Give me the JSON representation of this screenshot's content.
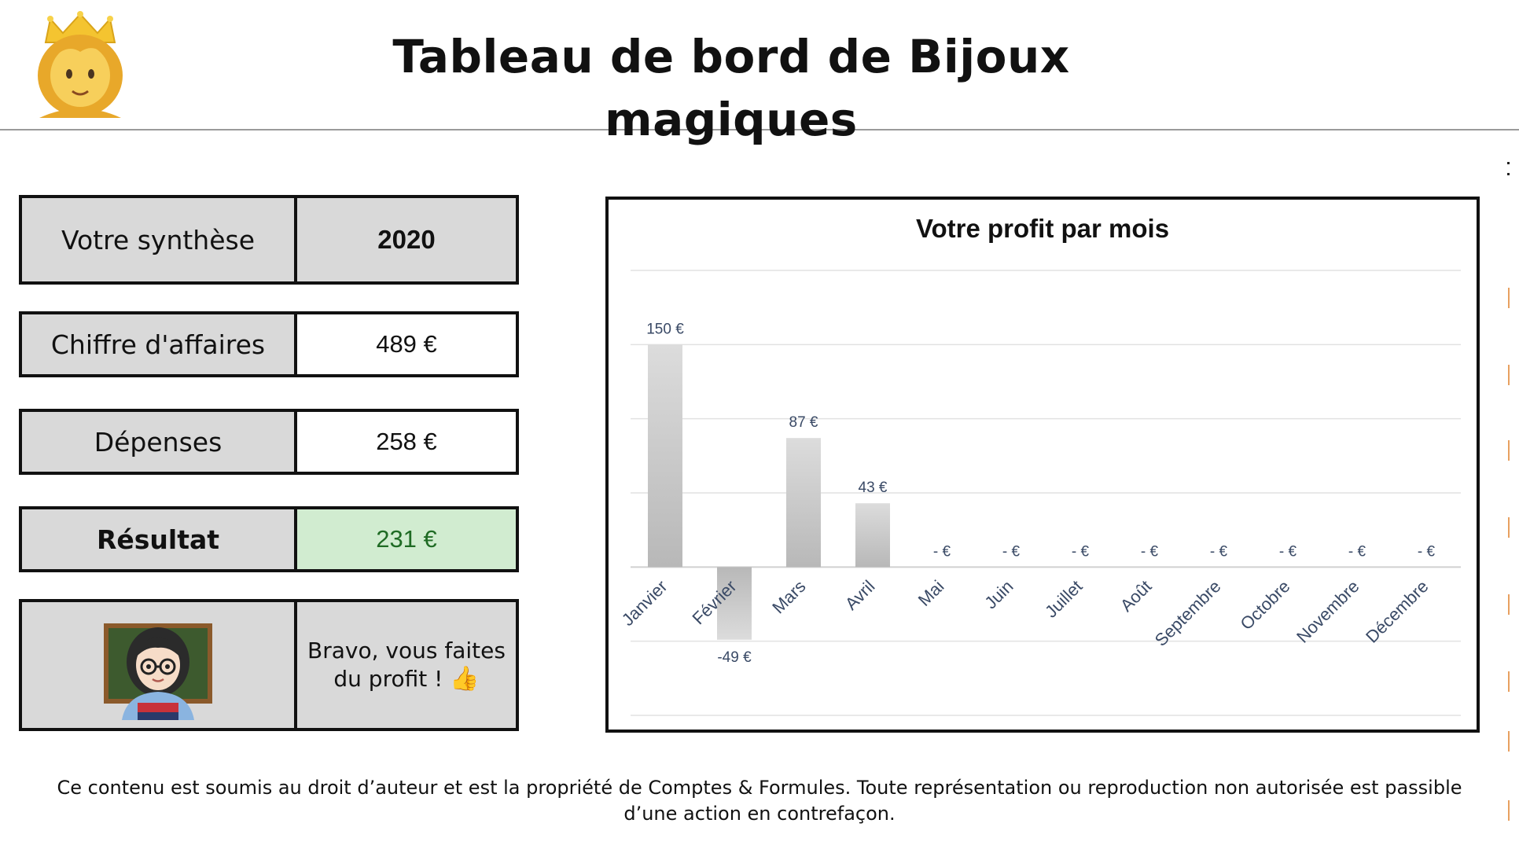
{
  "header": {
    "title": "Tableau de bord de Bijoux magiques",
    "icon": "princess-icon"
  },
  "summary": {
    "year_label": "Votre synthèse",
    "year_value": "2020",
    "revenue_label": "Chiffre d'affaires",
    "revenue_value": "489 €",
    "expenses_label": "Dépenses",
    "expenses_value": "258 €",
    "result_label": "Résultat",
    "result_value": "231 €",
    "message": "Bravo, vous faites du profit !",
    "message_icon": "thumbs-up-icon",
    "teacher_icon": "teacher-icon",
    "result_color": "#1f6b24",
    "result_bg": "#d1ecd0"
  },
  "chart_data": {
    "type": "bar",
    "title": "Votre profit par mois",
    "categories": [
      "Janvier",
      "Février",
      "Mars",
      "Avril",
      "Mai",
      "Juin",
      "Juillet",
      "Août",
      "Septembre",
      "Octobre",
      "Novembre",
      "Décembre"
    ],
    "values": [
      150,
      -49,
      87,
      43,
      0,
      0,
      0,
      0,
      0,
      0,
      0,
      0
    ],
    "data_labels": [
      "150 €",
      "-49 €",
      "87 €",
      "43 €",
      "-   €",
      "-   €",
      "-   €",
      "-   €",
      "-   €",
      "-   €",
      "-   €",
      "-   €"
    ],
    "xlabel": "",
    "ylabel": "",
    "ylim": [
      -100,
      200
    ],
    "grid": true,
    "legend": "none",
    "bar_color": "#c8c8c8",
    "label_color": "#3a4a66"
  },
  "footer": {
    "text_line1": "Ce contenu est soumis au droit d’auteur et est la propriété de Comptes & Formules. Toute représentation ou reproduction non autorisée est passible",
    "text_line2": "d’une action en contrefaçon."
  }
}
